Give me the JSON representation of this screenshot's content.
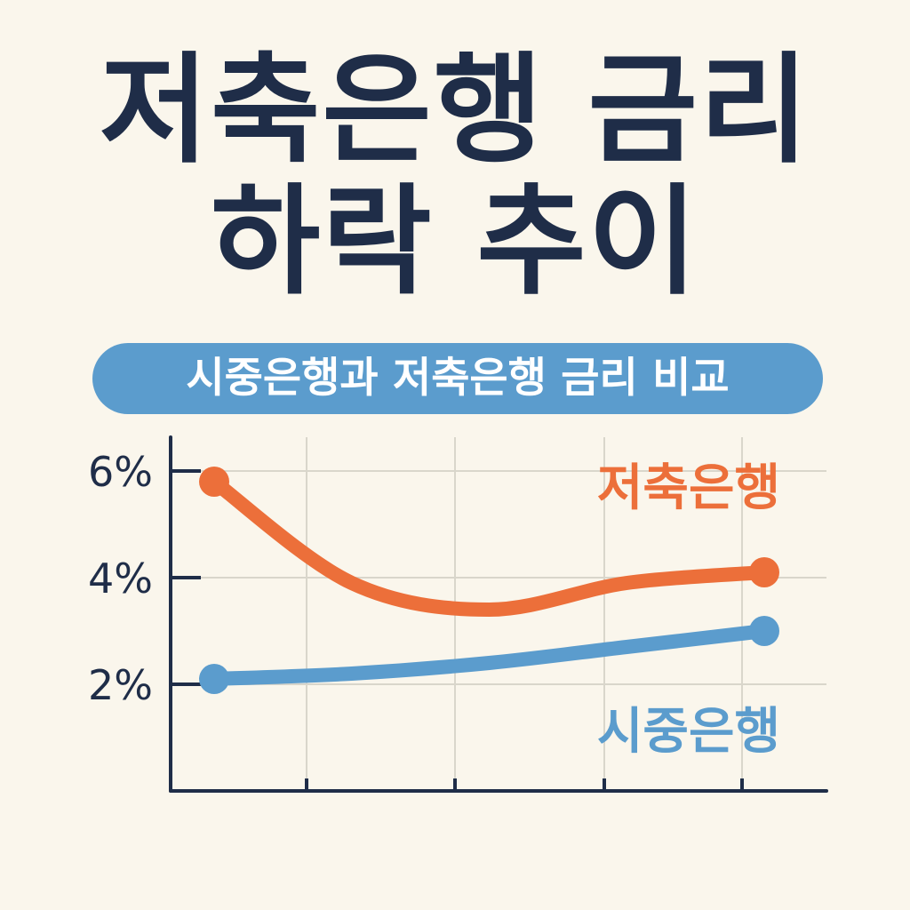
{
  "title_line1": "저축은행 금리",
  "title_line2": "하락 추이",
  "subtitle": "시중은행과 저축은행 금리 비교",
  "colors": {
    "background": "#faf6ec",
    "title": "#1f2d48",
    "pill": "#5b9ccd",
    "savings_bank": "#ec6f3a",
    "commercial_bank": "#5b9ccd",
    "axis": "#1f2d48",
    "grid": "#d9d6cb"
  },
  "chart_data": {
    "type": "line",
    "ylim": [
      0,
      7
    ],
    "y_ticks": [
      2,
      4,
      6
    ],
    "y_tick_labels": [
      "2%",
      "4%",
      "6%"
    ],
    "grid": true,
    "x": [
      0,
      1,
      2,
      3,
      4
    ],
    "series": [
      {
        "name": "저축은행",
        "color": "#ec6f3a",
        "values": [
          5.8,
          3.9,
          3.4,
          3.9,
          4.1
        ]
      },
      {
        "name": "시중은행",
        "color": "#5b9ccd",
        "values": [
          2.1,
          2.2,
          2.4,
          2.7,
          3.0
        ]
      }
    ]
  }
}
